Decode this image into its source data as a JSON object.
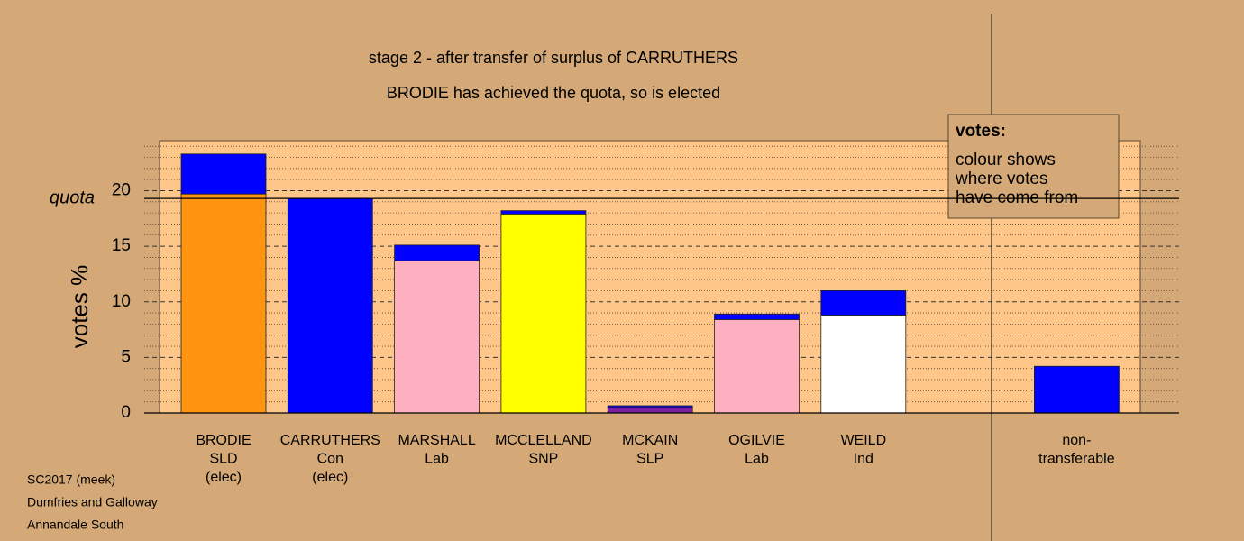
{
  "chart_data": {
    "type": "stacked_bar",
    "title": "stage 2 - after transfer of surplus of CARRUTHERS",
    "subtitle": "BRODIE has achieved the quota, so is elected",
    "y_label": "votes %",
    "labels": [
      [
        "BRODIE",
        "SLD",
        "(elec)"
      ],
      [
        "CARRUTHERS",
        "Con",
        "(elec)"
      ],
      [
        "MARSHALL",
        "Lab"
      ],
      [
        "MCCLELLAND",
        "SNP"
      ],
      [
        "MCKAIN",
        "SLP"
      ],
      [
        "OGILVIE",
        "Lab"
      ],
      [
        "WEILD",
        "Ind"
      ],
      [
        "non-",
        "transferable"
      ]
    ],
    "series": [
      {
        "colors": [
          "#ff9410",
          "#0000ff",
          "#ffb0c0",
          "#ffff00",
          "#7a1fa0",
          "#ffb0c0",
          "#ffffff",
          null
        ],
        "values": [
          19.7,
          19.3,
          13.7,
          17.9,
          0.5,
          8.4,
          8.8,
          null
        ]
      },
      {
        "color": "#0000ff",
        "values": [
          3.6,
          null,
          1.4,
          0.3,
          0.15,
          0.5,
          2.2,
          4.2
        ]
      }
    ],
    "quota": {
      "value": 19.3,
      "label": "quota"
    },
    "ylim": [
      0,
      24.5
    ],
    "yticks": [
      0,
      5,
      10,
      15,
      20
    ],
    "minor_yticks": [
      1,
      2,
      3,
      4,
      6,
      7,
      8,
      9,
      11,
      12,
      13,
      14,
      16,
      17,
      18,
      19,
      21,
      22,
      23,
      24
    ],
    "legend": {
      "title": "votes:",
      "lines": [
        "colour shows",
        "where votes",
        "have come from"
      ]
    },
    "footer": [
      "SC2017 (meek)",
      "Dumfries and Galloway",
      "Annandale South"
    ]
  }
}
